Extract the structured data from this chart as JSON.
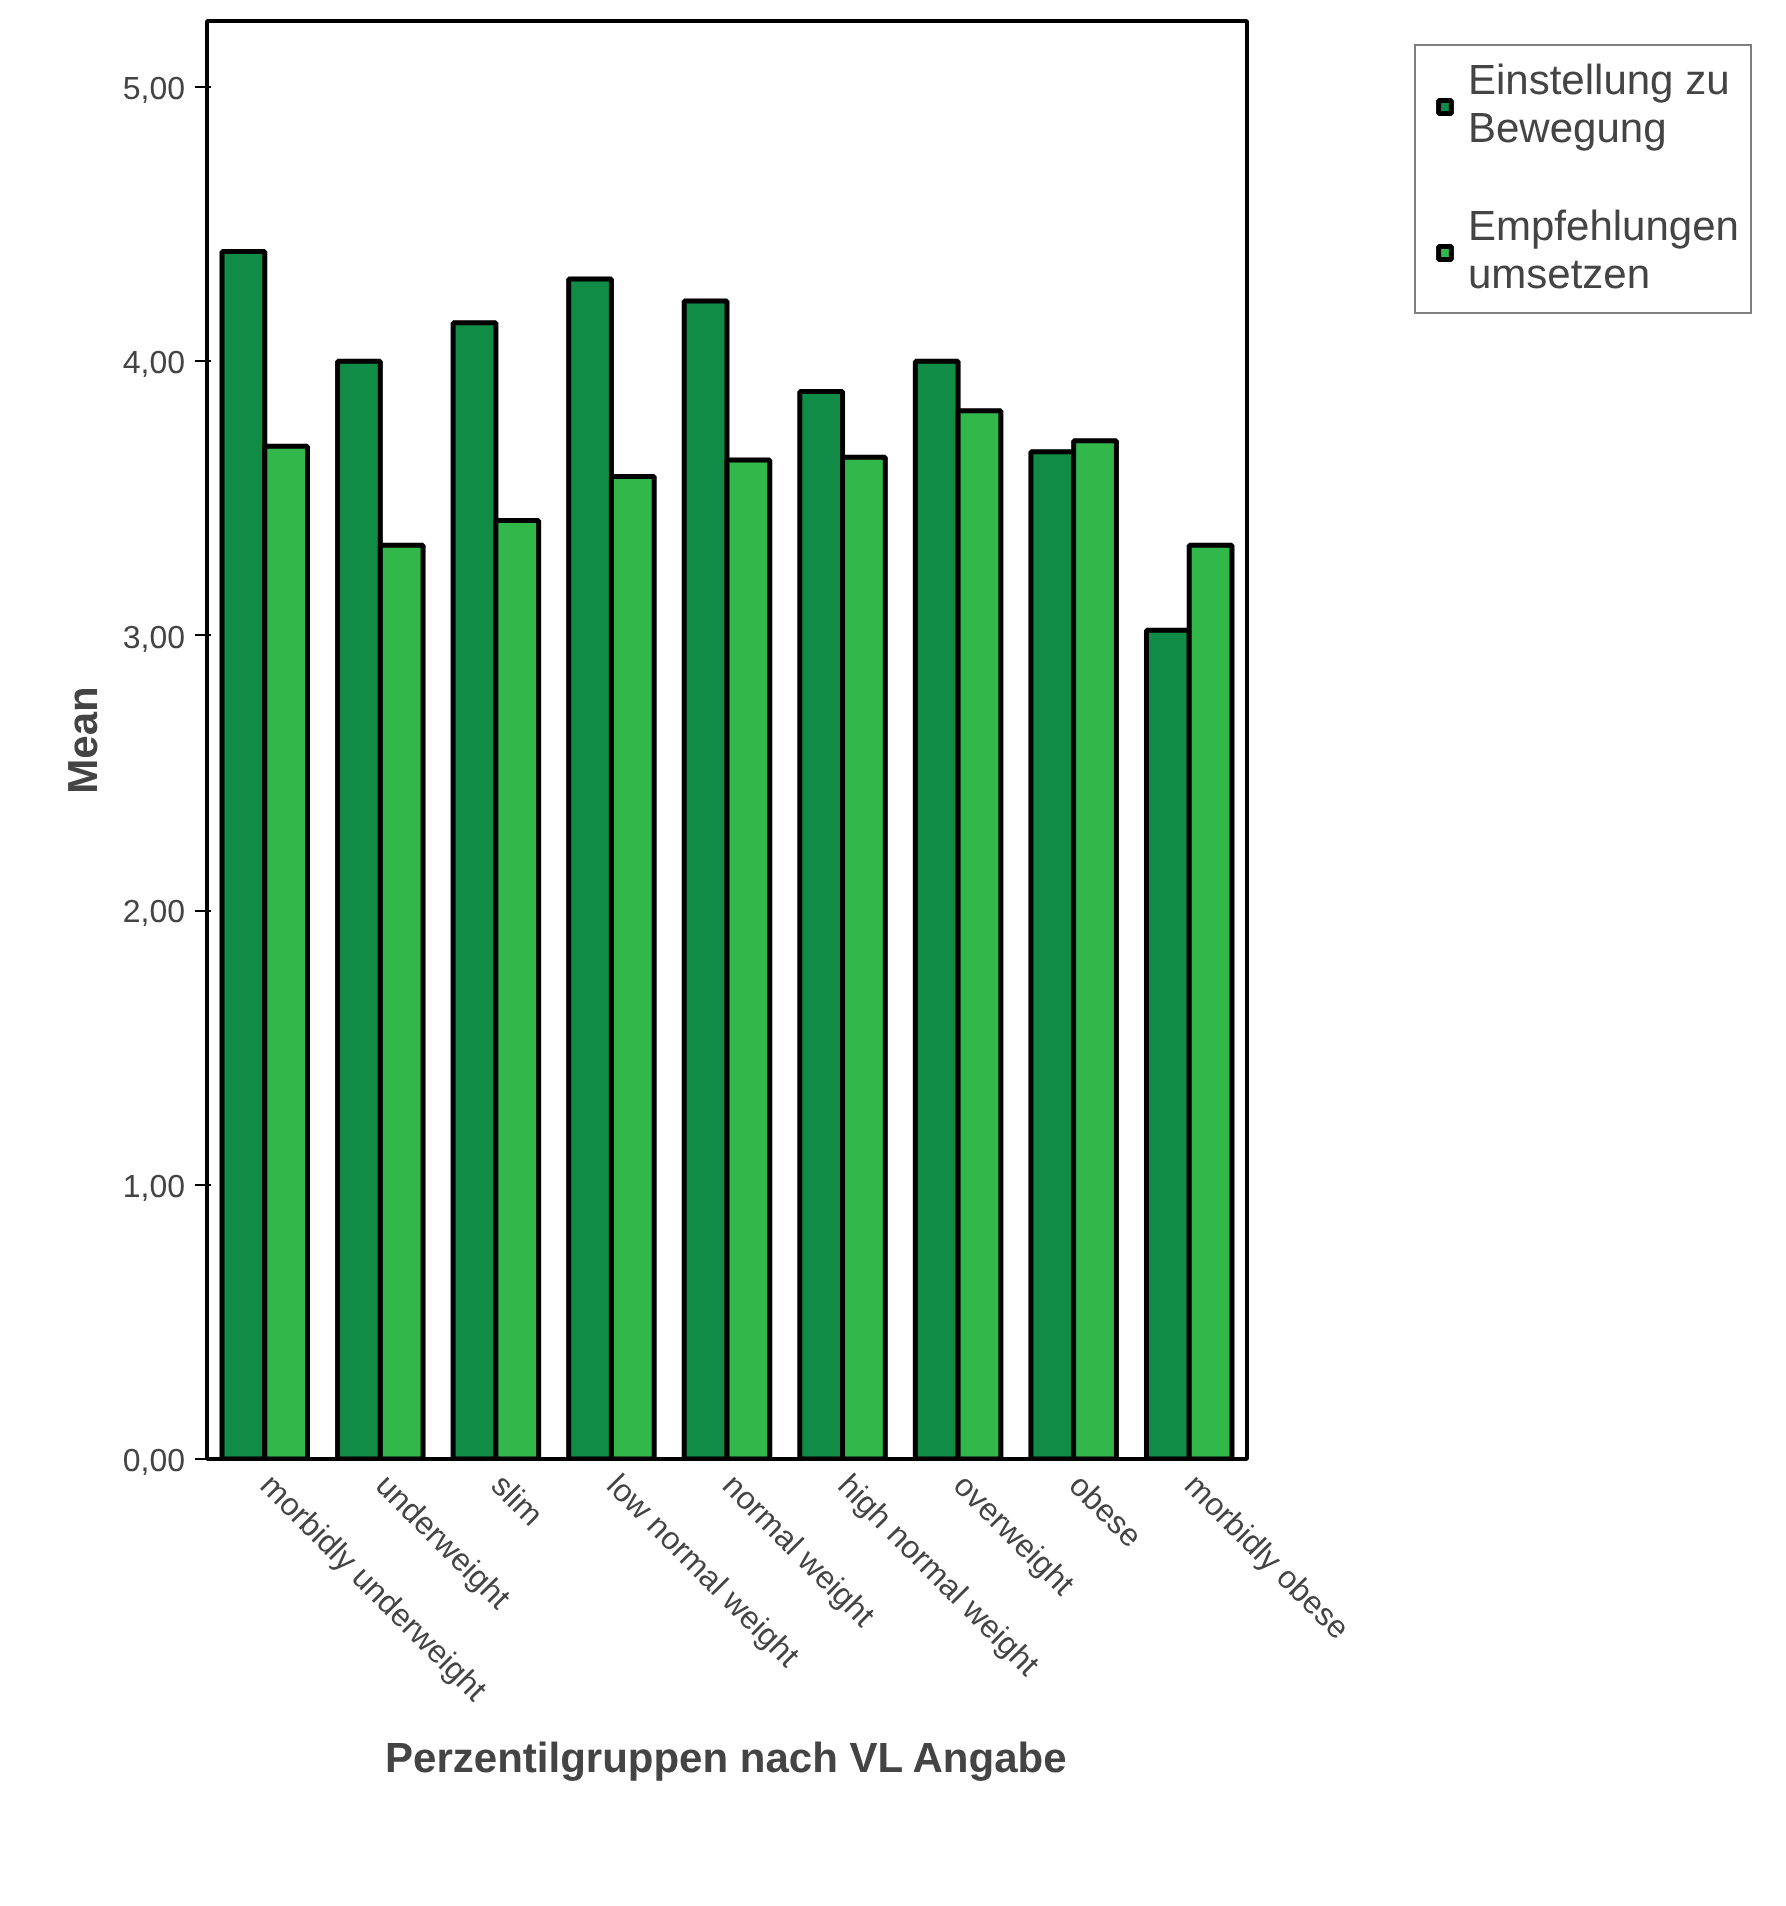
{
  "chart_data": {
    "type": "bar",
    "xlabel": "Perzentilgruppen nach VL Angabe",
    "ylabel": "Mean",
    "categories": [
      "morbidly underweight",
      "underweight",
      "slim",
      "low normal weight",
      "normal weight",
      "high normal weight",
      "overweight",
      "obese",
      "morbidly obese"
    ],
    "series": [
      {
        "name": "Einstellung zu Bewegung",
        "color": "#108c46",
        "values": [
          4.4,
          4.0,
          4.14,
          4.3,
          4.22,
          3.89,
          4.0,
          3.67,
          3.02
        ]
      },
      {
        "name": "Empfehlungen umsetzen",
        "color": "#32b84a",
        "values": [
          3.69,
          3.33,
          3.42,
          3.58,
          3.64,
          3.65,
          3.82,
          3.71,
          3.33
        ]
      }
    ],
    "ylim": [
      0,
      5.24
    ],
    "yticks": [
      {
        "value": 0,
        "label": "0,00"
      },
      {
        "value": 1,
        "label": "1,00"
      },
      {
        "value": 2,
        "label": "2,00"
      },
      {
        "value": 3,
        "label": "3,00"
      },
      {
        "value": 4,
        "label": "4,00"
      },
      {
        "value": 5,
        "label": "5,00"
      }
    ],
    "grid": false,
    "legend": "top right"
  }
}
